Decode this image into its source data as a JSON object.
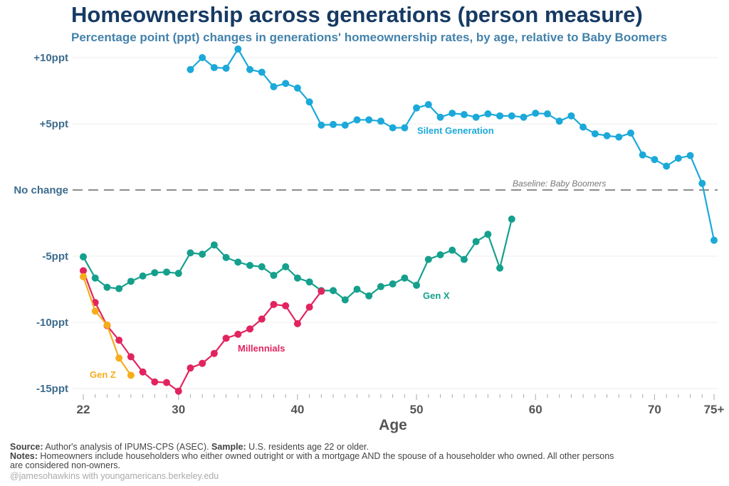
{
  "chart_data": {
    "type": "line",
    "title": "Homeownership across generations (person measure)",
    "subtitle": "Percentage point (ppt) changes in generations' homeownership rates, by age, relative to Baby Boomers",
    "xlabel": "Age",
    "ylabel": "",
    "xlim": [
      22,
      75
    ],
    "ylim": [
      -15,
      10
    ],
    "x_ticks": [
      {
        "value": 22,
        "label": "22"
      },
      {
        "value": 30,
        "label": "30"
      },
      {
        "value": 40,
        "label": "40"
      },
      {
        "value": 50,
        "label": "50"
      },
      {
        "value": 60,
        "label": "60"
      },
      {
        "value": 70,
        "label": "70"
      },
      {
        "value": 75,
        "label": "75+"
      }
    ],
    "y_ticks": [
      {
        "value": 10,
        "label": "+10ppt"
      },
      {
        "value": 5,
        "label": "+5ppt"
      },
      {
        "value": 0,
        "label": "No change"
      },
      {
        "value": -5,
        "label": "-5ppt"
      },
      {
        "value": -10,
        "label": "-10ppt"
      },
      {
        "value": -15,
        "label": "-15ppt"
      }
    ],
    "grid": true,
    "baseline": {
      "value": 0,
      "label": "Baseline: Baby Boomers"
    },
    "series": [
      {
        "name": "Silent Generation",
        "color": "#1ba9d9",
        "x_start": 31,
        "values": [
          9.1,
          10.0,
          9.25,
          9.2,
          10.65,
          9.1,
          8.9,
          7.8,
          8.05,
          7.7,
          6.65,
          4.9,
          4.95,
          4.9,
          5.3,
          5.3,
          5.2,
          4.7,
          4.7,
          6.2,
          6.45,
          5.5,
          5.8,
          5.7,
          5.5,
          5.75,
          5.6,
          5.6,
          5.5,
          5.8,
          5.75,
          5.2,
          5.6,
          4.75,
          4.25,
          4.1,
          4.0,
          4.3,
          2.65,
          2.3,
          1.8,
          2.4,
          2.6,
          0.5,
          -3.8
        ]
      },
      {
        "name": "Gen X",
        "color": "#14a08c",
        "x_start": 22,
        "values": [
          -5.05,
          -6.65,
          -7.35,
          -7.45,
          -6.9,
          -6.5,
          -6.25,
          -6.2,
          -6.3,
          -4.75,
          -4.85,
          -4.15,
          -5.1,
          -5.45,
          -5.7,
          -5.8,
          -6.45,
          -5.8,
          -6.65,
          -6.95,
          -7.6,
          -7.6,
          -8.3,
          -7.5,
          -8.0,
          -7.3,
          -7.1,
          -6.65,
          -7.2,
          -5.25,
          -4.9,
          -4.55,
          -5.25,
          -3.9,
          -3.35,
          -5.9,
          -2.2
        ]
      },
      {
        "name": "Millennials",
        "color": "#e2245e",
        "x_start": 22,
        "values": [
          -6.1,
          -8.5,
          -10.25,
          -11.35,
          -12.6,
          -13.75,
          -14.5,
          -14.55,
          -15.2,
          -13.45,
          -13.1,
          -12.35,
          -11.2,
          -10.9,
          -10.5,
          -9.75,
          -8.65,
          -8.75,
          -10.1,
          -8.85,
          -7.65
        ]
      },
      {
        "name": "Gen Z",
        "color": "#f6ad1c",
        "x_start": 22,
        "values": [
          -6.55,
          -9.15,
          -10.2,
          -12.7,
          -14.0
        ]
      }
    ]
  },
  "footer": {
    "source_label": "Source:",
    "source_text": " Author's analysis of IPUMS-CPS (ASEC). ",
    "sample_label": "Sample:",
    "sample_text": " U.S. residents age 22 or older.",
    "notes_label": "Notes:",
    "notes_text": " Homeowners include householders who either owned outright or with a mortgage AND the spouse of a householder who owned. All other persons",
    "notes_text2": "are considered non-owners.",
    "handle": "@jamesohawkins",
    "with": " with ",
    "site": "youngamericans.berkeley.edu"
  }
}
